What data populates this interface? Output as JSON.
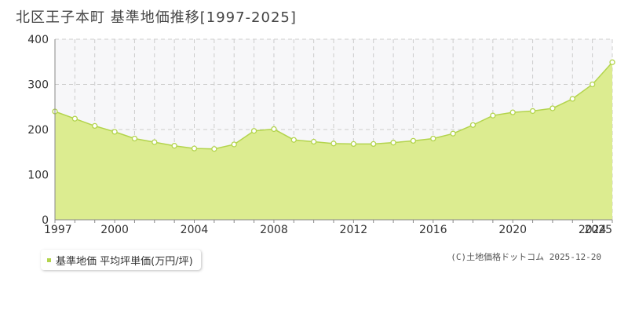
{
  "title": "北区王子本町 基準地価推移[1997-2025]",
  "legend_label": "基準地価 平均坪単価(万円/坪)",
  "credit": "(C)土地価格ドットコム 2025-12-20",
  "colors": {
    "fill": "#dcec90",
    "line": "#b3d44d",
    "point_fill": "#ffffff",
    "grid": "#cccccc",
    "upper_band": "#f7f7f9",
    "axis": "#888888",
    "legend_swatch": "#b3d44d"
  },
  "chart_data": {
    "type": "area",
    "title": "北区王子本町 基準地価推移[1997-2025]",
    "xlabel": "",
    "ylabel": "",
    "xlim": [
      1997,
      2025
    ],
    "ylim": [
      0,
      400
    ],
    "grid": true,
    "legend_position": "bottom-left",
    "x_ticks": [
      1997,
      2000,
      2004,
      2008,
      2012,
      2016,
      2020,
      2024,
      2025
    ],
    "y_ticks": [
      0,
      100,
      200,
      300,
      400
    ],
    "series": [
      {
        "name": "基準地価 平均坪単価(万円/坪)",
        "x": [
          1997,
          1998,
          1999,
          2000,
          2001,
          2002,
          2003,
          2004,
          2005,
          2006,
          2007,
          2008,
          2009,
          2010,
          2011,
          2012,
          2013,
          2014,
          2015,
          2016,
          2017,
          2018,
          2019,
          2020,
          2021,
          2022,
          2023,
          2024,
          2025
        ],
        "values": [
          240,
          224,
          208,
          195,
          180,
          172,
          164,
          158,
          157,
          167,
          197,
          201,
          177,
          173,
          169,
          168,
          168,
          171,
          175,
          180,
          191,
          210,
          231,
          238,
          241,
          247,
          268,
          300,
          349
        ]
      }
    ]
  }
}
